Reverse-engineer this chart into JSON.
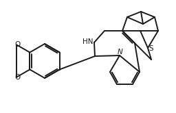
{
  "bg_color": "#ffffff",
  "line_color": "#1a1a1a",
  "line_width": 1.4,
  "text_color": "#1a1a1a",
  "S_label": "S",
  "N_label": "N",
  "NH_label": "HN",
  "O_labels": [
    "O",
    "O"
  ],
  "fig_width": 2.56,
  "fig_height": 1.65,
  "dpi": 100
}
